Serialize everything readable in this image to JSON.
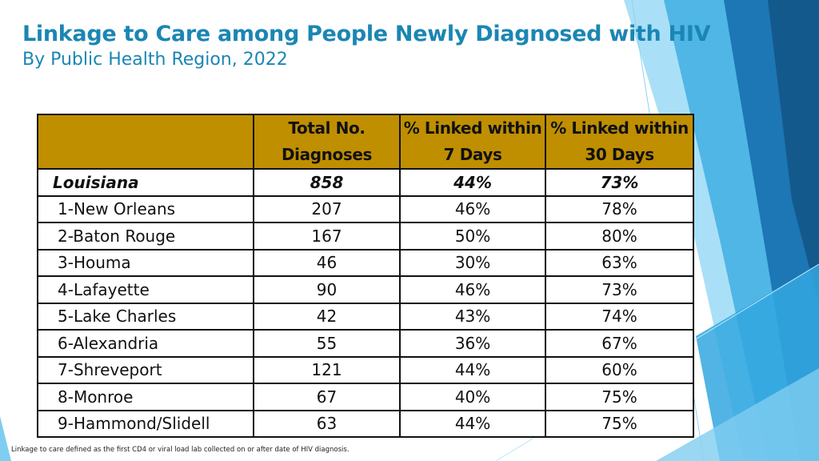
{
  "title": "Linkage to Care among People Newly Diagnosed with HIV",
  "subtitle": "By Public Health Region, 2022",
  "table": {
    "headers": {
      "region": "",
      "total_line1": "Total No.",
      "total_line2": "Diagnoses",
      "linked7_line1": "% Linked within",
      "linked7_line2": "7 Days",
      "linked30_line1": "% Linked within",
      "linked30_line2": "30 Days"
    },
    "state_row": {
      "region": "Louisiana",
      "total": "858",
      "linked7": "44%",
      "linked30": "73%"
    },
    "rows": [
      {
        "region": "1-New Orleans",
        "total": "207",
        "linked7": "46%",
        "linked30": "78%"
      },
      {
        "region": "2-Baton Rouge",
        "total": "167",
        "linked7": "50%",
        "linked30": "80%"
      },
      {
        "region": "3-Houma",
        "total": "46",
        "linked7": "30%",
        "linked30": "63%"
      },
      {
        "region": "4-Lafayette",
        "total": "90",
        "linked7": "46%",
        "linked30": "73%"
      },
      {
        "region": "5-Lake Charles",
        "total": "42",
        "linked7": "43%",
        "linked30": "74%"
      },
      {
        "region": "6-Alexandria",
        "total": "55",
        "linked7": "36%",
        "linked30": "67%"
      },
      {
        "region": "7-Shreveport",
        "total": "121",
        "linked7": "44%",
        "linked30": "60%"
      },
      {
        "region": "8-Monroe",
        "total": "67",
        "linked7": "40%",
        "linked30": "75%"
      },
      {
        "region": "9-Hammond/Slidell",
        "total": "63",
        "linked7": "44%",
        "linked30": "75%"
      }
    ]
  },
  "footnote": "Linkage to care defined as the first CD4 or viral load lab collected on or after date of HIV diagnosis.",
  "colors": {
    "title": "#1b86b3",
    "header_fill": "#bf8f00",
    "accent_dark": "#1a6fa3",
    "accent_mid": "#2b9fd8",
    "accent_light": "#8fd3f3"
  }
}
